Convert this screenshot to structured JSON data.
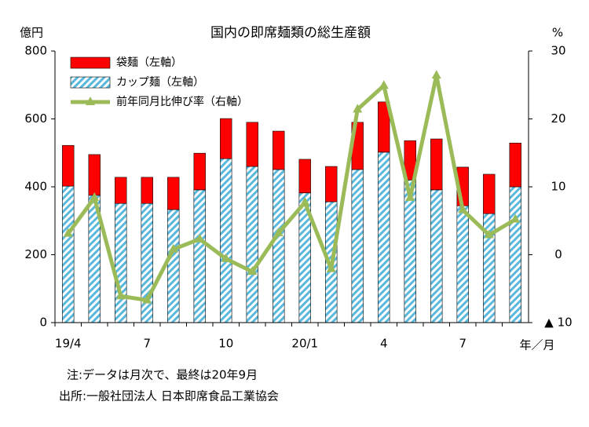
{
  "chart_data": {
    "type": "bar_line",
    "title": "国内の即席麺類の総生産額",
    "y_label": "億円",
    "y2_label": "%",
    "x_label": "年／月",
    "notes": [
      "注:データは月次で、最終は20年9月",
      "出所:一般社団法人 日本即席食品工業協会"
    ],
    "categories": [
      "19/4",
      null,
      null,
      "7",
      null,
      null,
      "10",
      null,
      null,
      "20/1",
      null,
      null,
      "4",
      null,
      null,
      "7",
      null,
      null
    ],
    "series": [
      {
        "name": "カップ麺（左軸）",
        "color": "#5bb8dd",
        "pattern": "diagonal-stripes",
        "stack": "bar",
        "values": [
          402,
          375,
          351,
          351,
          333,
          391,
          483,
          460,
          451,
          382,
          356,
          451,
          502,
          420,
          391,
          344,
          321,
          400
        ]
      },
      {
        "name": "袋麺（左軸）",
        "color": "#ff0000",
        "stack": "bar",
        "values": [
          120,
          120,
          77,
          77,
          95,
          108,
          118,
          130,
          113,
          99,
          104,
          139,
          148,
          116,
          150,
          114,
          116,
          129
        ]
      },
      {
        "name": "前年同月比伸び率（右軸）",
        "color": "#9bbb59",
        "axis": "y2",
        "values": [
          3.1,
          8.4,
          -6.1,
          -6.7,
          0.8,
          2.3,
          -0.6,
          -2.5,
          3.2,
          7.7,
          -2.1,
          21.4,
          24.9,
          8.4,
          26.4,
          6.6,
          2.9,
          5.2
        ]
      }
    ],
    "legend_order": [
      1,
      0,
      2
    ],
    "ylim": [
      0,
      800
    ],
    "yticks": [
      0,
      200,
      400,
      600,
      800
    ],
    "y2lim": [
      -10,
      30
    ],
    "y2ticks": [
      {
        "value": -10,
        "label": "▲ 10"
      },
      0,
      10,
      20,
      30
    ]
  }
}
